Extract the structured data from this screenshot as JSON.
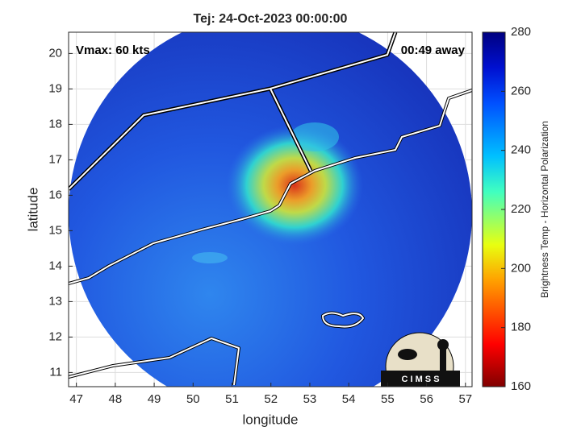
{
  "map": {
    "title": "Tej: 24-Oct-2023 00:00:00",
    "annotations": {
      "left": "Vmax: 60 kts",
      "right": "00:49 away"
    },
    "xlabel": "longitude",
    "ylabel": "latitude",
    "xlim": [
      46.8,
      57.17
    ],
    "ylim": [
      10.6,
      20.6
    ],
    "xticks": [
      47,
      48,
      49,
      50,
      51,
      52,
      53,
      54,
      55,
      56,
      57
    ],
    "yticks": [
      11,
      12,
      13,
      14,
      15,
      16,
      17,
      18,
      19,
      20
    ],
    "grid": true,
    "colorbar": {
      "label": "Brightness Temp - Horizontal Polarization",
      "lim": [
        160,
        280
      ],
      "ticks": [
        160,
        180,
        200,
        220,
        240,
        260,
        280
      ]
    },
    "logo": "C I M S S"
  }
}
